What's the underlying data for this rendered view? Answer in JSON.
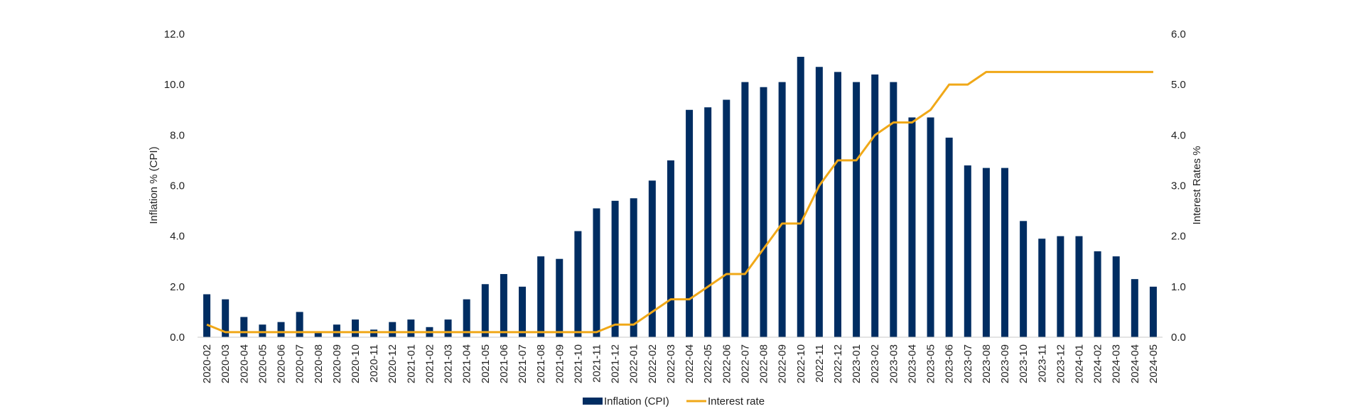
{
  "chart_data": {
    "type": "bar",
    "title": "",
    "categories": [
      "2020-02",
      "2020-03",
      "2020-04",
      "2020-05",
      "2020-06",
      "2020-07",
      "2020-08",
      "2020-09",
      "2020-10",
      "2020-11",
      "2020-12",
      "2021-01",
      "2021-02",
      "2021-03",
      "2021-04",
      "2021-05",
      "2021-06",
      "2021-07",
      "2021-08",
      "2021-09",
      "2021-10",
      "2021-11",
      "2021-12",
      "2022-01",
      "2022-02",
      "2022-03",
      "2022-04",
      "2022-05",
      "2022-06",
      "2022-07",
      "2022-08",
      "2022-09",
      "2022-10",
      "2022-11",
      "2022-12",
      "2023-01",
      "2023-02",
      "2023-03",
      "2023-04",
      "2023-05",
      "2023-06",
      "2023-07",
      "2023-08",
      "2023-09",
      "2023-10",
      "2023-11",
      "2023-12",
      "2024-01",
      "2024-02",
      "2024-03",
      "2024-04",
      "2024-05"
    ],
    "series": [
      {
        "name": "Inflation (CPI)",
        "type": "bar",
        "axis": "left",
        "color": "#002d62",
        "values": [
          1.7,
          1.5,
          0.8,
          0.5,
          0.6,
          1.0,
          0.2,
          0.5,
          0.7,
          0.3,
          0.6,
          0.7,
          0.4,
          0.7,
          1.5,
          2.1,
          2.5,
          2.0,
          3.2,
          3.1,
          4.2,
          5.1,
          5.4,
          5.5,
          6.2,
          7.0,
          9.0,
          9.1,
          9.4,
          10.1,
          9.9,
          10.1,
          11.1,
          10.7,
          10.5,
          10.1,
          10.4,
          10.1,
          8.7,
          8.7,
          7.9,
          6.8,
          6.7,
          6.7,
          4.6,
          3.9,
          4.0,
          4.0,
          3.4,
          3.2,
          2.3,
          2.0
        ]
      },
      {
        "name": "Interest rate",
        "type": "line",
        "axis": "right",
        "color": "#f0a818",
        "values": [
          0.25,
          0.1,
          0.1,
          0.1,
          0.1,
          0.1,
          0.1,
          0.1,
          0.1,
          0.1,
          0.1,
          0.1,
          0.1,
          0.1,
          0.1,
          0.1,
          0.1,
          0.1,
          0.1,
          0.1,
          0.1,
          0.1,
          0.25,
          0.25,
          0.5,
          0.75,
          0.75,
          1.0,
          1.25,
          1.25,
          1.75,
          2.25,
          2.25,
          3.0,
          3.5,
          3.5,
          4.0,
          4.25,
          4.25,
          4.5,
          5.0,
          5.0,
          5.25,
          5.25,
          5.25,
          5.25,
          5.25,
          5.25,
          5.25,
          5.25,
          5.25,
          5.25
        ]
      }
    ],
    "ylabel": "Inflation % (CPI)",
    "ylim": [
      0,
      12
    ],
    "yticks": [
      "0.0",
      "2.0",
      "4.0",
      "6.0",
      "8.0",
      "10.0",
      "12.0"
    ],
    "y2label": "Interest Rates %",
    "y2lim": [
      0,
      6
    ],
    "y2ticks": [
      "0.0",
      "1.0",
      "2.0",
      "3.0",
      "4.0",
      "5.0",
      "6.0"
    ],
    "xlabel": "",
    "grid": false,
    "legend": {
      "position": "bottom",
      "items": [
        "Inflation (CPI)",
        "Interest rate"
      ]
    }
  }
}
